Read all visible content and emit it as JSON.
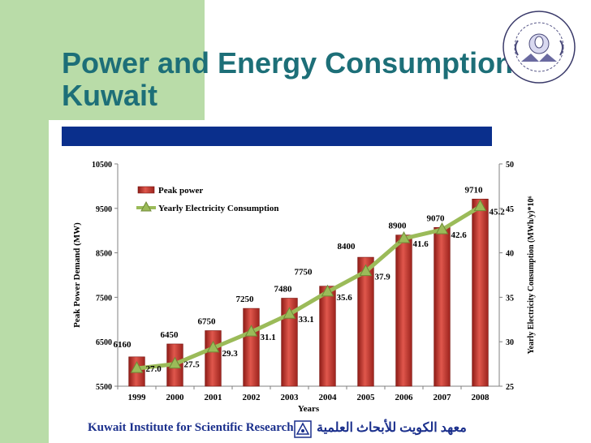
{
  "slide": {
    "title": "Power and Energy Consumption in Kuwait",
    "footer_en": "Kuwait Institute for Scientific Research",
    "footer_ar": "معهد الكويت للأبحاث العلمية",
    "accent_color": "#1d6f78",
    "bar_color": "#0a2f8c"
  },
  "chart_data": {
    "type": "bar",
    "categories": [
      "1999",
      "2000",
      "2001",
      "2002",
      "2003",
      "2004",
      "2005",
      "2006",
      "2007",
      "2008"
    ],
    "series": [
      {
        "name": "Peak power",
        "type": "bar",
        "axis": "left",
        "color": "#c0392b",
        "values": [
          6160,
          6450,
          6750,
          7250,
          7480,
          7750,
          8400,
          8900,
          9070,
          9710
        ]
      },
      {
        "name": "Yearly Electricity Consumption",
        "type": "line",
        "axis": "right",
        "color": "#9bbb59",
        "values": [
          27.0,
          27.5,
          29.3,
          31.1,
          33.1,
          35.6,
          37.9,
          41.6,
          42.6,
          45.2
        ]
      }
    ],
    "xlabel": "Years",
    "ylabel": "Peak Power Demand (MW)",
    "y2label": "Yearly Electricity Consumption  (MWh/y)*10⁶",
    "ylim": [
      5500,
      10500
    ],
    "yticks": [
      5500,
      6500,
      7500,
      8500,
      9500,
      10500
    ],
    "y2lim": [
      25,
      50
    ],
    "y2ticks": [
      25,
      30,
      35,
      40,
      45,
      50
    ],
    "legend_position": "top-left",
    "grid": false
  }
}
